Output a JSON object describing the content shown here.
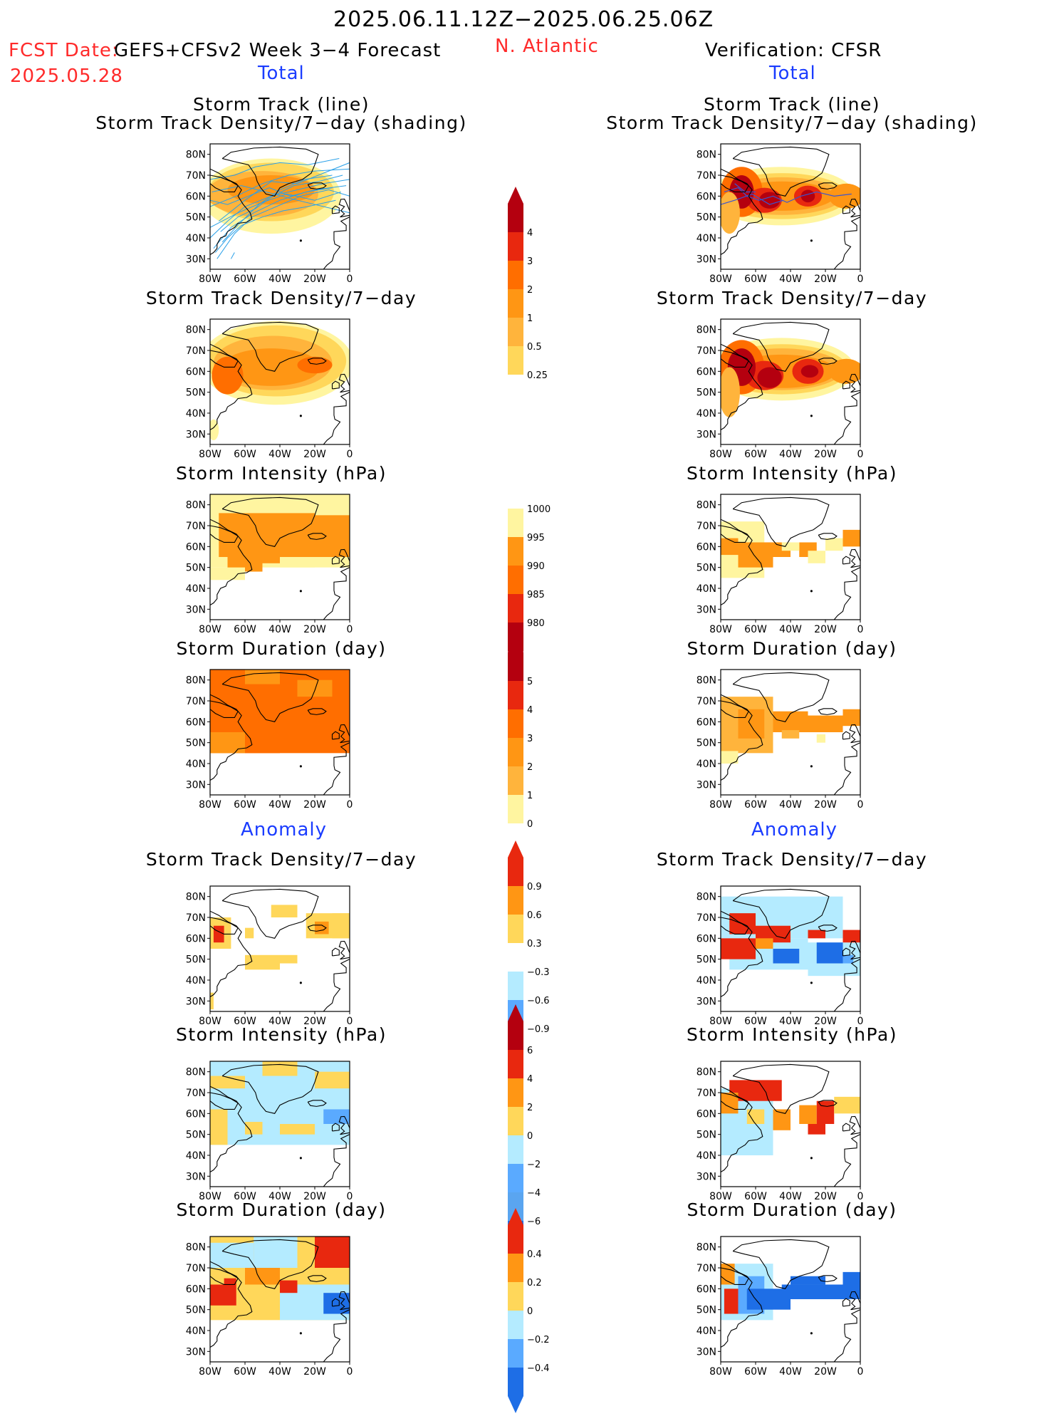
{
  "header": {
    "date_range": "2025.06.11.12Z−2025.06.25.06Z",
    "fcst_date_label": "FCST Date:",
    "fcst_date_value": "2025.05.28",
    "model_label": "GEFS+CFSv2 Week 3−4 Forecast",
    "region": "N. Atlantic",
    "verification": "Verification: CFSR",
    "section_total_left": "Total",
    "section_total_right": "Total",
    "section_anom_left": "Anomaly",
    "section_anom_right": "Anomaly"
  },
  "panel_titles": {
    "track_line": "Storm Track (line)",
    "track_shading": "Storm Track Density/7−day (shading)",
    "density": "Storm Track Density/7−day",
    "intensity": "Storm Intensity (hPa)",
    "duration": "Storm Duration (day)"
  },
  "map_axes": {
    "lat_labels": [
      "80N",
      "70N",
      "60N",
      "50N",
      "40N",
      "30N"
    ],
    "lon_labels": [
      "80W",
      "60W",
      "40W",
      "20W",
      "0"
    ]
  },
  "colorbars": {
    "density_total": [
      "4",
      "3",
      "2",
      "1",
      "0.5",
      "0.25"
    ],
    "intensity_total": [
      "1000",
      "995",
      "990",
      "985",
      "980"
    ],
    "duration_total": [
      "5",
      "4",
      "3",
      "2",
      "1",
      "0"
    ],
    "density_anom": [
      "0.9",
      "0.6",
      "0.3",
      "−0.3",
      "−0.6",
      "−0.9"
    ],
    "intensity_anom": [
      "6",
      "4",
      "2",
      "0",
      "−2",
      "−4",
      "−6"
    ],
    "duration_anom": [
      "0.4",
      "0.2",
      "0",
      "−0.2",
      "−0.4"
    ]
  },
  "colors": {
    "header_red": "#ff2a2a",
    "header_blue": "#1a3cff",
    "pale_yellow": "#fff5a0",
    "yellow": "#ffd75a",
    "light_orange": "#ffb43c",
    "orange": "#ff9614",
    "dark_orange": "#ff6e00",
    "red": "#e8280f",
    "dark_red": "#b4000f",
    "light_blue": "#b4ebff",
    "mid_blue": "#5aaaff",
    "blue": "#1e6ee6",
    "track_line": "#2aa0e8"
  }
}
